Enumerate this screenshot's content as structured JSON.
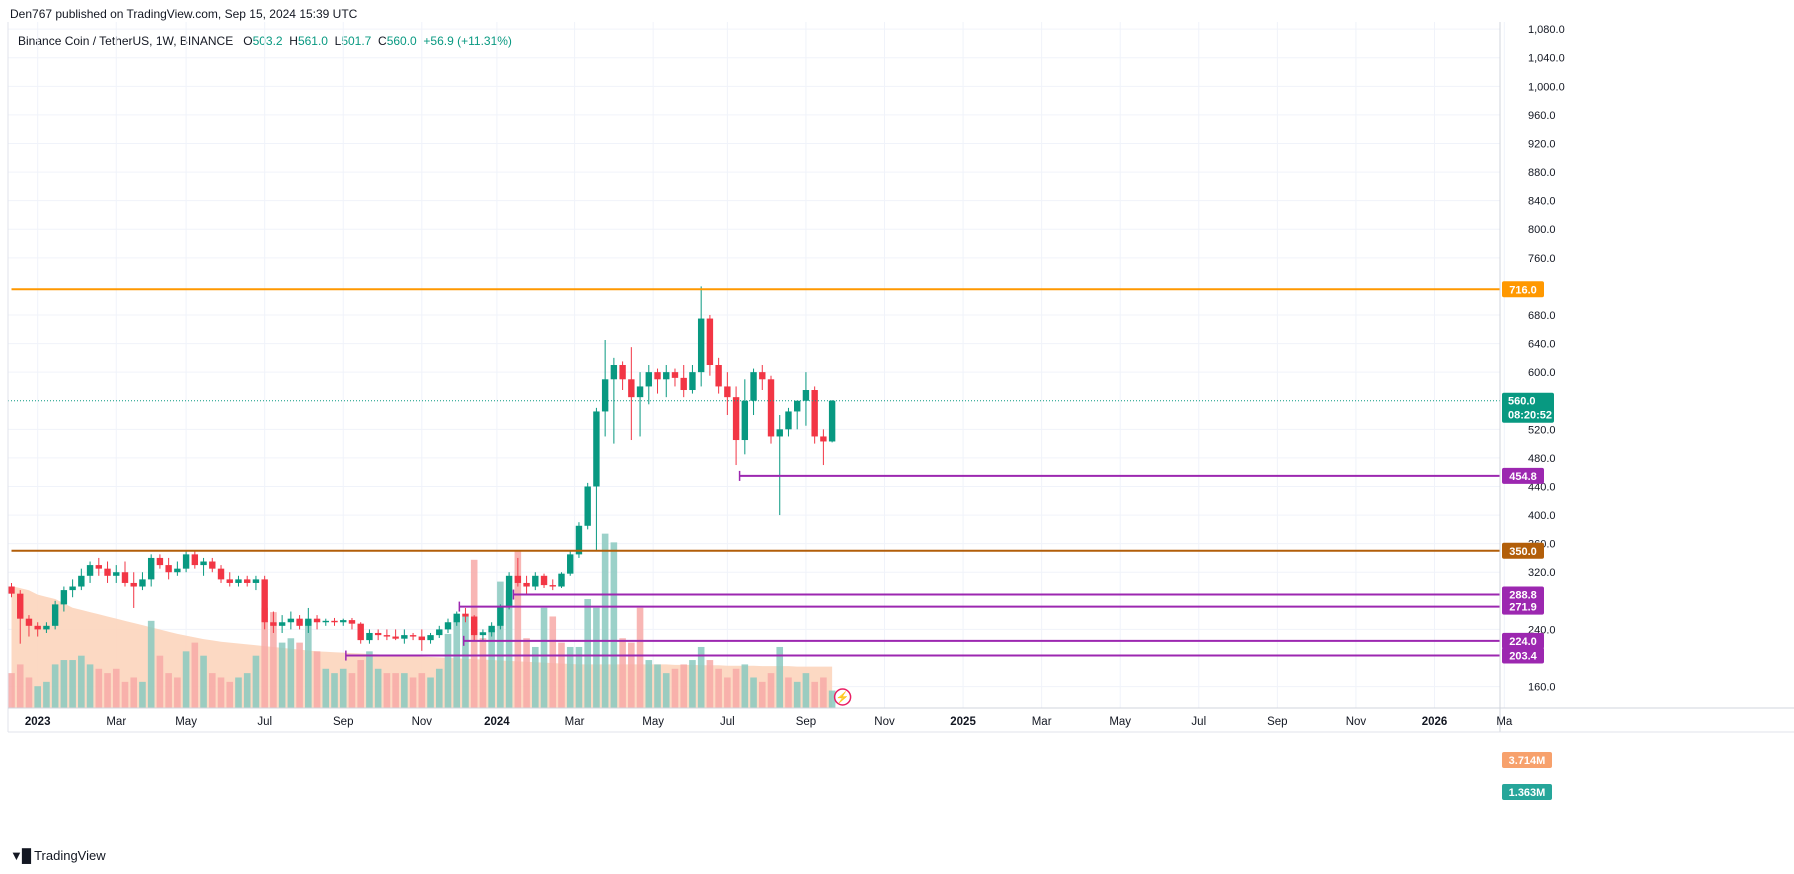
{
  "header": {
    "published": "Den767 published on TradingView.com, Sep 15, 2024 15:39 UTC"
  },
  "legend": {
    "symbol": "Binance Coin / TetherUS, 1W, BINANCE",
    "o_label": "O",
    "o": "503.2",
    "h_label": "H",
    "h": "561.0",
    "l_label": "L",
    "l": "501.7",
    "c_label": "C",
    "c": "560.0",
    "change": "+56.9 (+11.31%)"
  },
  "brand": {
    "name": "TradingView"
  },
  "colors": {
    "up": "#089981",
    "down": "#f23645",
    "vol_up": "#89c9bf",
    "vol_down": "#f7a9a7",
    "resistance": "#ff9800",
    "support350": "#b25e09",
    "support": "#9c27b0",
    "ma_fill": "#fcd5bd",
    "grid": "#f0f3fa"
  },
  "chart_data": {
    "type": "candlestick",
    "title": "Binance Coin / TetherUS, 1W, BINANCE",
    "ylim": [
      130,
      1090
    ],
    "price_ticks": [
      "1,080.0",
      "1,040.0",
      "1,000.0",
      "960.0",
      "920.0",
      "880.0",
      "840.0",
      "800.0",
      "760.0",
      "680.0",
      "640.0",
      "600.0",
      "520.0",
      "480.0",
      "440.0",
      "400.0",
      "360.0",
      "320.0",
      "240.0",
      "160.0"
    ],
    "price_tick_values": [
      1080,
      1040,
      1000,
      960,
      920,
      880,
      840,
      800,
      760,
      680,
      640,
      600,
      520,
      480,
      440,
      400,
      360,
      320,
      240,
      160
    ],
    "time_ticks": [
      {
        "label": "2023",
        "week": 3,
        "bold": true
      },
      {
        "label": "Mar",
        "week": 12
      },
      {
        "label": "May",
        "week": 20
      },
      {
        "label": "Jul",
        "week": 29
      },
      {
        "label": "Sep",
        "week": 38
      },
      {
        "label": "Nov",
        "week": 47
      },
      {
        "label": "2024",
        "week": 55.6,
        "bold": true
      },
      {
        "label": "Mar",
        "week": 64.5
      },
      {
        "label": "May",
        "week": 73.5
      },
      {
        "label": "Jul",
        "week": 82
      },
      {
        "label": "Sep",
        "week": 91
      },
      {
        "label": "Nov",
        "week": 100
      },
      {
        "label": "2025",
        "week": 109,
        "bold": true
      },
      {
        "label": "Mar",
        "week": 118
      },
      {
        "label": "May",
        "week": 127
      },
      {
        "label": "Jul",
        "week": 136
      },
      {
        "label": "Sep",
        "week": 145
      },
      {
        "label": "Nov",
        "week": 154
      },
      {
        "label": "2026",
        "week": 163,
        "bold": true
      },
      {
        "label": "Ma",
        "week": 171
      }
    ],
    "levels": [
      {
        "value": 716.0,
        "label": "716.0",
        "color": "#ff9800",
        "start_week": 0
      },
      {
        "value": 350.0,
        "label": "350.0",
        "color": "#b25e09",
        "start_week": 0
      },
      {
        "value": 454.8,
        "label": "454.8",
        "color": "#9c27b0",
        "start_week": 83.4
      },
      {
        "value": 288.8,
        "label": "288.8",
        "color": "#9c27b0",
        "start_week": 57.5
      },
      {
        "value": 271.9,
        "label": "271.9",
        "color": "#9c27b0",
        "start_week": 51.3
      },
      {
        "value": 224.0,
        "label": "224.0",
        "color": "#9c27b0",
        "start_week": 51.8
      },
      {
        "value": 203.4,
        "label": "203.4",
        "color": "#9c27b0",
        "start_week": 38.3
      }
    ],
    "current": {
      "value": 560.0,
      "label": "560.0",
      "countdown": "08:20:52"
    },
    "volume_labels": [
      {
        "label": "3.714M",
        "color": "#f7a16c"
      },
      {
        "label": "1.363M",
        "color": "#26a69a"
      }
    ],
    "volume_scale_max": 3.9,
    "candles": [
      [
        300,
        305,
        285,
        290
      ],
      [
        290,
        295,
        220,
        255
      ],
      [
        255,
        260,
        230,
        245
      ],
      [
        245,
        250,
        230,
        240
      ],
      [
        240,
        250,
        235,
        245
      ],
      [
        245,
        280,
        240,
        275
      ],
      [
        275,
        300,
        265,
        295
      ],
      [
        295,
        310,
        285,
        300
      ],
      [
        300,
        325,
        295,
        315
      ],
      [
        315,
        335,
        305,
        330
      ],
      [
        330,
        340,
        315,
        325
      ],
      [
        325,
        335,
        305,
        315
      ],
      [
        315,
        330,
        305,
        320
      ],
      [
        320,
        335,
        300,
        305
      ],
      [
        305,
        320,
        270,
        300
      ],
      [
        300,
        320,
        295,
        310
      ],
      [
        310,
        345,
        300,
        340
      ],
      [
        340,
        345,
        325,
        330
      ],
      [
        330,
        340,
        310,
        320
      ],
      [
        320,
        335,
        315,
        325
      ],
      [
        325,
        350,
        320,
        345
      ],
      [
        345,
        350,
        325,
        330
      ],
      [
        330,
        340,
        315,
        335
      ],
      [
        335,
        340,
        320,
        325
      ],
      [
        325,
        330,
        305,
        310
      ],
      [
        310,
        320,
        300,
        305
      ],
      [
        305,
        315,
        300,
        310
      ],
      [
        310,
        315,
        300,
        305
      ],
      [
        305,
        315,
        295,
        310
      ],
      [
        310,
        315,
        240,
        250
      ],
      [
        250,
        265,
        235,
        245
      ],
      [
        245,
        260,
        235,
        250
      ],
      [
        250,
        265,
        240,
        255
      ],
      [
        255,
        260,
        240,
        245
      ],
      [
        245,
        270,
        235,
        255
      ],
      [
        255,
        260,
        240,
        250
      ],
      [
        250,
        255,
        245,
        252
      ],
      [
        252,
        256,
        245,
        250
      ],
      [
        250,
        255,
        245,
        253
      ],
      [
        253,
        256,
        240,
        248
      ],
      [
        248,
        250,
        220,
        225
      ],
      [
        225,
        240,
        220,
        235
      ],
      [
        235,
        240,
        225,
        232
      ],
      [
        232,
        240,
        225,
        230
      ],
      [
        230,
        240,
        225,
        227
      ],
      [
        227,
        240,
        220,
        232
      ],
      [
        232,
        235,
        225,
        230
      ],
      [
        230,
        240,
        210,
        225
      ],
      [
        225,
        235,
        220,
        232
      ],
      [
        232,
        245,
        228,
        240
      ],
      [
        240,
        255,
        235,
        250
      ],
      [
        250,
        265,
        245,
        262
      ],
      [
        262,
        270,
        250,
        258
      ],
      [
        258,
        260,
        225,
        232
      ],
      [
        232,
        240,
        225,
        236
      ],
      [
        236,
        250,
        230,
        245
      ],
      [
        245,
        275,
        240,
        272
      ],
      [
        272,
        320,
        268,
        315
      ],
      [
        315,
        340,
        300,
        305
      ],
      [
        305,
        315,
        290,
        300
      ],
      [
        300,
        320,
        295,
        315
      ],
      [
        315,
        318,
        298,
        302
      ],
      [
        302,
        310,
        295,
        300
      ],
      [
        300,
        320,
        298,
        318
      ],
      [
        318,
        350,
        315,
        345
      ],
      [
        345,
        390,
        340,
        385
      ],
      [
        385,
        445,
        380,
        440
      ],
      [
        440,
        550,
        350,
        545
      ],
      [
        545,
        645,
        510,
        590
      ],
      [
        590,
        620,
        500,
        610
      ],
      [
        610,
        615,
        575,
        590
      ],
      [
        590,
        635,
        505,
        565
      ],
      [
        565,
        600,
        510,
        580
      ],
      [
        580,
        610,
        555,
        600
      ],
      [
        600,
        605,
        570,
        590
      ],
      [
        590,
        610,
        565,
        600
      ],
      [
        600,
        605,
        580,
        592
      ],
      [
        592,
        610,
        565,
        575
      ],
      [
        575,
        610,
        570,
        600
      ],
      [
        600,
        720,
        580,
        675
      ],
      [
        675,
        680,
        595,
        610
      ],
      [
        610,
        620,
        570,
        580
      ],
      [
        580,
        600,
        540,
        565
      ],
      [
        565,
        580,
        470,
        505
      ],
      [
        505,
        590,
        485,
        560
      ],
      [
        560,
        605,
        540,
        600
      ],
      [
        600,
        610,
        575,
        590
      ],
      [
        590,
        595,
        500,
        510
      ],
      [
        510,
        540,
        400,
        520
      ],
      [
        520,
        550,
        510,
        545
      ],
      [
        545,
        560,
        520,
        560
      ],
      [
        560,
        600,
        525,
        575
      ],
      [
        575,
        580,
        500,
        510
      ],
      [
        510,
        520,
        470,
        503
      ],
      [
        503,
        561,
        501.7,
        560
      ]
    ],
    "volumes": [
      [
        0.8,
        0
      ],
      [
        1.0,
        0
      ],
      [
        0.7,
        0
      ],
      [
        0.5,
        1
      ],
      [
        0.6,
        1
      ],
      [
        1.0,
        1
      ],
      [
        1.1,
        1
      ],
      [
        1.1,
        1
      ],
      [
        1.2,
        1
      ],
      [
        1.0,
        1
      ],
      [
        0.9,
        0
      ],
      [
        0.8,
        0
      ],
      [
        0.9,
        0
      ],
      [
        0.6,
        0
      ],
      [
        0.7,
        0
      ],
      [
        0.6,
        1
      ],
      [
        2.0,
        1
      ],
      [
        1.2,
        0
      ],
      [
        0.8,
        0
      ],
      [
        0.7,
        0
      ],
      [
        1.3,
        1
      ],
      [
        1.5,
        0
      ],
      [
        1.2,
        1
      ],
      [
        0.8,
        0
      ],
      [
        0.7,
        0
      ],
      [
        0.6,
        0
      ],
      [
        0.7,
        1
      ],
      [
        0.8,
        1
      ],
      [
        1.2,
        1
      ],
      [
        2.3,
        0
      ],
      [
        2.2,
        0
      ],
      [
        1.5,
        1
      ],
      [
        1.6,
        1
      ],
      [
        1.5,
        0
      ],
      [
        2.0,
        1
      ],
      [
        1.3,
        0
      ],
      [
        0.9,
        1
      ],
      [
        0.8,
        1
      ],
      [
        0.9,
        1
      ],
      [
        0.8,
        0
      ],
      [
        1.1,
        0
      ],
      [
        1.3,
        1
      ],
      [
        0.9,
        1
      ],
      [
        0.8,
        0
      ],
      [
        0.8,
        0
      ],
      [
        0.8,
        1
      ],
      [
        0.7,
        0
      ],
      [
        0.8,
        0
      ],
      [
        0.7,
        1
      ],
      [
        0.9,
        1
      ],
      [
        1.7,
        1
      ],
      [
        2.1,
        1
      ],
      [
        2.1,
        1
      ],
      [
        3.4,
        0
      ],
      [
        1.6,
        0
      ],
      [
        1.8,
        1
      ],
      [
        2.9,
        1
      ],
      [
        2.7,
        1
      ],
      [
        3.6,
        0
      ],
      [
        1.6,
        0
      ],
      [
        1.4,
        1
      ],
      [
        2.3,
        1
      ],
      [
        2.1,
        0
      ],
      [
        1.5,
        0
      ],
      [
        1.4,
        1
      ],
      [
        1.4,
        1
      ],
      [
        2.5,
        1
      ],
      [
        2.3,
        1
      ],
      [
        4.0,
        1
      ],
      [
        3.8,
        1
      ],
      [
        1.6,
        0
      ],
      [
        1.5,
        0
      ],
      [
        2.3,
        0
      ],
      [
        1.1,
        1
      ],
      [
        1.0,
        1
      ],
      [
        0.8,
        1
      ],
      [
        0.9,
        0
      ],
      [
        1.0,
        0
      ],
      [
        1.1,
        1
      ],
      [
        1.4,
        1
      ],
      [
        1.1,
        0
      ],
      [
        0.9,
        0
      ],
      [
        0.7,
        0
      ],
      [
        0.9,
        0
      ],
      [
        1.0,
        1
      ],
      [
        0.7,
        1
      ],
      [
        0.6,
        0
      ],
      [
        0.8,
        0
      ],
      [
        1.4,
        1
      ],
      [
        0.7,
        0
      ],
      [
        0.6,
        1
      ],
      [
        0.8,
        1
      ],
      [
        0.6,
        0
      ],
      [
        0.7,
        0
      ],
      [
        0.4,
        1
      ]
    ],
    "volume_ma": [
      2.8,
      2.75,
      2.7,
      2.6,
      2.55,
      2.5,
      2.4,
      2.3,
      2.25,
      2.2,
      2.15,
      2.1,
      2.05,
      2.0,
      1.95,
      1.9,
      1.85,
      1.8,
      1.75,
      1.7,
      1.66,
      1.62,
      1.58,
      1.55,
      1.52,
      1.5,
      1.48,
      1.46,
      1.44,
      1.42,
      1.4,
      1.38,
      1.36,
      1.34,
      1.32,
      1.3,
      1.29,
      1.28,
      1.27,
      1.26,
      1.25,
      1.24,
      1.23,
      1.22,
      1.21,
      1.2,
      1.19,
      1.18,
      1.17,
      1.16,
      1.15,
      1.14,
      1.13,
      1.12,
      1.11,
      1.1,
      1.09,
      1.08,
      1.07,
      1.06,
      1.05,
      1.04,
      1.03,
      1.02,
      1.01,
      1.0,
      1.0,
      1.0,
      1.0,
      1.0,
      1.0,
      1.0,
      1.0,
      1.0,
      1.0,
      1.0,
      0.99,
      0.99,
      0.99,
      0.98,
      0.98,
      0.98,
      0.97,
      0.97,
      0.97,
      0.97,
      0.96,
      0.96,
      0.96,
      0.96,
      0.95,
      0.95,
      0.95,
      0.95,
      0.95
    ]
  }
}
